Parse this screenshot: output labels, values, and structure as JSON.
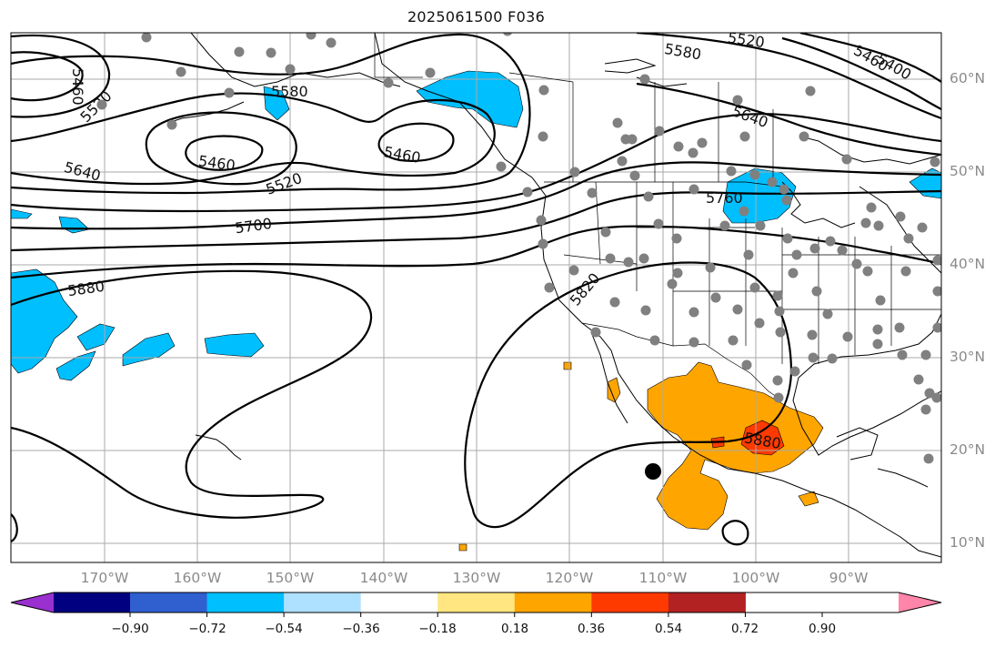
{
  "title": "2025061500 F036",
  "lat_labels": [
    "60°N",
    "50°N",
    "40°N",
    "30°N",
    "20°N",
    "10°N"
  ],
  "lon_labels": [
    "170°W",
    "160°W",
    "150°W",
    "140°W",
    "130°W",
    "120°W",
    "110°W",
    "100°W",
    "90°W"
  ],
  "contour_labels": [
    "5460",
    "5520",
    "5580",
    "5520",
    "5460",
    "5400",
    "5460",
    "5520",
    "5460",
    "5640",
    "5700",
    "5760",
    "5640",
    "5880",
    "5820",
    "5880"
  ],
  "colorbar": {
    "ticks": [
      "−0.90",
      "−0.72",
      "−0.54",
      "−0.36",
      "−0.18",
      "0.18",
      "0.36",
      "0.54",
      "0.72",
      "0.90"
    ],
    "colors": [
      "#9b30d0",
      "#000080",
      "#3060d0",
      "#00bfff",
      "#aee0ff",
      "#ffffff",
      "#ffe680",
      "#ffa500",
      "#ff3a00",
      "#b22222",
      "#ff85aa"
    ]
  },
  "colors": {
    "negative_fill": "#00bfff",
    "positive_fill": "#ffa500",
    "strong_positive_fill": "#ff3a00",
    "station_marker": "#808080",
    "contour": "#000000",
    "grid": "#aaaaaa"
  }
}
